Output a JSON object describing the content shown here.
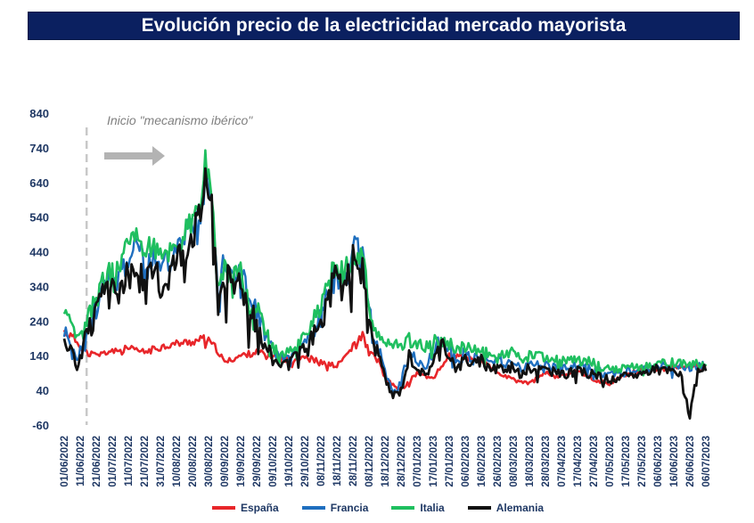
{
  "title": "Evolución precio de la electricidad mercado mayorista",
  "annotation": "Inicio \"mecanismo ibérico\"",
  "chart_data": {
    "type": "line",
    "ylim": [
      -60,
      840
    ],
    "yticks": [
      -60,
      40,
      140,
      240,
      340,
      440,
      540,
      640,
      740,
      840
    ],
    "x_tick_labels": [
      "01/06/2022",
      "11/06/2022",
      "21/06/2022",
      "01/07/2022",
      "11/07/2022",
      "21/07/2022",
      "31/07/2022",
      "10/08/2022",
      "20/08/2022",
      "30/08/2022",
      "09/09/2022",
      "19/09/2022",
      "29/09/2022",
      "09/10/2022",
      "19/10/2022",
      "29/10/2022",
      "08/11/2022",
      "18/11/2022",
      "28/11/2022",
      "08/12/2022",
      "18/12/2022",
      "28/12/2022",
      "07/01/2023",
      "17/01/2023",
      "27/01/2023",
      "06/02/2023",
      "16/02/2023",
      "26/02/2023",
      "08/03/2023",
      "18/03/2023",
      "28/03/2023",
      "07/04/2023",
      "17/04/2023",
      "27/04/2023",
      "07/05/2023",
      "17/05/2023",
      "27/05/2023",
      "06/06/2023",
      "16/06/2023",
      "26/06/2023",
      "06/07/2023"
    ],
    "event_marker_x": "15/06/2022",
    "legend_position": "bottom",
    "series": [
      {
        "name": "España",
        "color": "#e8262a",
        "key": "es",
        "anchors": [
          [
            0,
            210
          ],
          [
            6,
            190
          ],
          [
            14,
            150
          ],
          [
            20,
            140
          ],
          [
            30,
            155
          ],
          [
            40,
            160
          ],
          [
            50,
            150
          ],
          [
            60,
            165
          ],
          [
            70,
            175
          ],
          [
            80,
            180
          ],
          [
            88,
            190
          ],
          [
            95,
            160
          ],
          [
            100,
            120
          ],
          [
            110,
            140
          ],
          [
            120,
            150
          ],
          [
            130,
            140
          ],
          [
            140,
            125
          ],
          [
            150,
            140
          ],
          [
            160,
            120
          ],
          [
            170,
            110
          ],
          [
            180,
            165
          ],
          [
            186,
            200
          ],
          [
            190,
            150
          ],
          [
            196,
            125
          ],
          [
            200,
            75
          ],
          [
            205,
            55
          ],
          [
            210,
            40
          ],
          [
            220,
            90
          ],
          [
            230,
            75
          ],
          [
            240,
            140
          ],
          [
            250,
            135
          ],
          [
            260,
            125
          ],
          [
            270,
            90
          ],
          [
            280,
            70
          ],
          [
            290,
            60
          ],
          [
            300,
            90
          ],
          [
            310,
            80
          ],
          [
            320,
            100
          ],
          [
            330,
            70
          ],
          [
            340,
            60
          ],
          [
            350,
            85
          ],
          [
            360,
            100
          ],
          [
            370,
            100
          ],
          [
            380,
            105
          ],
          [
            390,
            110
          ],
          [
            400,
            110
          ]
        ]
      },
      {
        "name": "Francia",
        "color": "#1f6fbf",
        "key": "fr",
        "anchors": [
          [
            0,
            215
          ],
          [
            4,
            170
          ],
          [
            8,
            120
          ],
          [
            12,
            180
          ],
          [
            18,
            260
          ],
          [
            25,
            340
          ],
          [
            32,
            360
          ],
          [
            40,
            420
          ],
          [
            45,
            480
          ],
          [
            50,
            380
          ],
          [
            55,
            430
          ],
          [
            60,
            380
          ],
          [
            70,
            460
          ],
          [
            75,
            500
          ],
          [
            80,
            520
          ],
          [
            85,
            560
          ],
          [
            88,
            720
          ],
          [
            92,
            600
          ],
          [
            96,
            330
          ],
          [
            100,
            410
          ],
          [
            105,
            360
          ],
          [
            110,
            410
          ],
          [
            115,
            290
          ],
          [
            120,
            270
          ],
          [
            125,
            210
          ],
          [
            130,
            150
          ],
          [
            135,
            140
          ],
          [
            140,
            130
          ],
          [
            145,
            160
          ],
          [
            150,
            175
          ],
          [
            155,
            220
          ],
          [
            160,
            250
          ],
          [
            165,
            340
          ],
          [
            170,
            380
          ],
          [
            175,
            360
          ],
          [
            180,
            440
          ],
          [
            184,
            450
          ],
          [
            188,
            380
          ],
          [
            192,
            200
          ],
          [
            196,
            160
          ],
          [
            200,
            90
          ],
          [
            205,
            35
          ],
          [
            210,
            60
          ],
          [
            215,
            160
          ],
          [
            220,
            130
          ],
          [
            225,
            100
          ],
          [
            230,
            150
          ],
          [
            235,
            190
          ],
          [
            240,
            165
          ],
          [
            245,
            120
          ],
          [
            250,
            150
          ],
          [
            255,
            130
          ],
          [
            260,
            140
          ],
          [
            265,
            120
          ],
          [
            270,
            135
          ],
          [
            275,
            115
          ],
          [
            280,
            130
          ],
          [
            285,
            95
          ],
          [
            290,
            120
          ],
          [
            300,
            115
          ],
          [
            310,
            100
          ],
          [
            320,
            110
          ],
          [
            330,
            100
          ],
          [
            340,
            85
          ],
          [
            350,
            95
          ],
          [
            360,
            100
          ],
          [
            370,
            110
          ],
          [
            380,
            105
          ],
          [
            390,
            105
          ],
          [
            400,
            110
          ]
        ]
      },
      {
        "name": "Italia",
        "color": "#1fbf5f",
        "key": "it",
        "anchors": [
          [
            0,
            250
          ],
          [
            4,
            230
          ],
          [
            8,
            180
          ],
          [
            12,
            210
          ],
          [
            18,
            290
          ],
          [
            25,
            360
          ],
          [
            32,
            380
          ],
          [
            40,
            470
          ],
          [
            45,
            520
          ],
          [
            50,
            440
          ],
          [
            55,
            470
          ],
          [
            60,
            420
          ],
          [
            70,
            470
          ],
          [
            75,
            500
          ],
          [
            80,
            530
          ],
          [
            85,
            580
          ],
          [
            88,
            710
          ],
          [
            92,
            580
          ],
          [
            96,
            340
          ],
          [
            100,
            400
          ],
          [
            105,
            350
          ],
          [
            110,
            400
          ],
          [
            115,
            280
          ],
          [
            120,
            275
          ],
          [
            125,
            215
          ],
          [
            130,
            160
          ],
          [
            135,
            150
          ],
          [
            140,
            150
          ],
          [
            145,
            180
          ],
          [
            150,
            200
          ],
          [
            155,
            250
          ],
          [
            160,
            270
          ],
          [
            165,
            360
          ],
          [
            170,
            390
          ],
          [
            175,
            380
          ],
          [
            180,
            420
          ],
          [
            184,
            440
          ],
          [
            188,
            360
          ],
          [
            192,
            220
          ],
          [
            196,
            200
          ],
          [
            200,
            180
          ],
          [
            205,
            170
          ],
          [
            210,
            175
          ],
          [
            215,
            185
          ],
          [
            220,
            175
          ],
          [
            225,
            165
          ],
          [
            230,
            180
          ],
          [
            235,
            190
          ],
          [
            240,
            175
          ],
          [
            245,
            160
          ],
          [
            250,
            165
          ],
          [
            255,
            155
          ],
          [
            260,
            160
          ],
          [
            265,
            145
          ],
          [
            270,
            150
          ],
          [
            275,
            140
          ],
          [
            280,
            150
          ],
          [
            285,
            130
          ],
          [
            290,
            140
          ],
          [
            300,
            135
          ],
          [
            310,
            125
          ],
          [
            320,
            130
          ],
          [
            330,
            120
          ],
          [
            340,
            100
          ],
          [
            350,
            105
          ],
          [
            360,
            110
          ],
          [
            370,
            120
          ],
          [
            380,
            120
          ],
          [
            390,
            115
          ],
          [
            400,
            115
          ]
        ]
      },
      {
        "name": "Alemania",
        "color": "#111111",
        "key": "de",
        "anchors": [
          [
            0,
            205
          ],
          [
            4,
            150
          ],
          [
            8,
            110
          ],
          [
            12,
            170
          ],
          [
            18,
            240
          ],
          [
            25,
            310
          ],
          [
            32,
            320
          ],
          [
            40,
            360
          ],
          [
            45,
            400
          ],
          [
            50,
            330
          ],
          [
            55,
            380
          ],
          [
            60,
            340
          ],
          [
            70,
            420
          ],
          [
            75,
            460
          ],
          [
            80,
            500
          ],
          [
            85,
            540
          ],
          [
            88,
            680
          ],
          [
            92,
            560
          ],
          [
            96,
            300
          ],
          [
            100,
            380
          ],
          [
            105,
            330
          ],
          [
            110,
            380
          ],
          [
            115,
            260
          ],
          [
            120,
            240
          ],
          [
            125,
            180
          ],
          [
            130,
            130
          ],
          [
            135,
            120
          ],
          [
            140,
            110
          ],
          [
            145,
            140
          ],
          [
            150,
            160
          ],
          [
            155,
            200
          ],
          [
            160,
            230
          ],
          [
            165,
            310
          ],
          [
            170,
            360
          ],
          [
            175,
            340
          ],
          [
            180,
            410
          ],
          [
            184,
            430
          ],
          [
            188,
            340
          ],
          [
            192,
            180
          ],
          [
            196,
            150
          ],
          [
            200,
            70
          ],
          [
            205,
            25
          ],
          [
            210,
            40
          ],
          [
            215,
            140
          ],
          [
            220,
            110
          ],
          [
            225,
            80
          ],
          [
            230,
            130
          ],
          [
            235,
            170
          ],
          [
            240,
            150
          ],
          [
            245,
            100
          ],
          [
            250,
            135
          ],
          [
            255,
            115
          ],
          [
            260,
            125
          ],
          [
            265,
            105
          ],
          [
            270,
            120
          ],
          [
            275,
            95
          ],
          [
            280,
            115
          ],
          [
            285,
            80
          ],
          [
            290,
            105
          ],
          [
            300,
            100
          ],
          [
            310,
            85
          ],
          [
            320,
            95
          ],
          [
            330,
            85
          ],
          [
            340,
            70
          ],
          [
            350,
            80
          ],
          [
            360,
            90
          ],
          [
            370,
            100
          ],
          [
            380,
            95
          ],
          [
            385,
            80
          ],
          [
            390,
            -35
          ],
          [
            395,
            95
          ],
          [
            400,
            100
          ]
        ]
      }
    ]
  }
}
